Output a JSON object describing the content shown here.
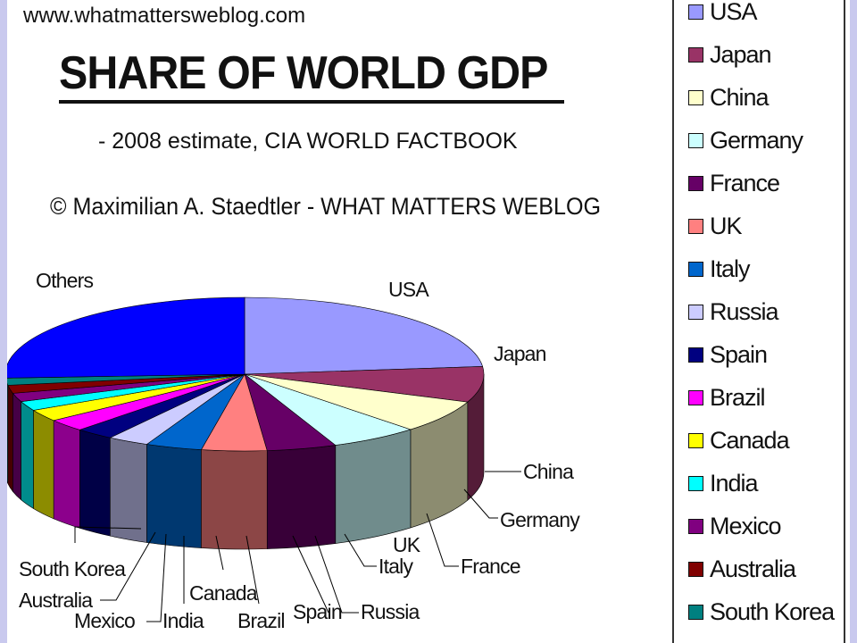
{
  "header": {
    "url": "www.whatmattersweblog.com",
    "title": "SHARE OF WORLD GDP",
    "subtitle": "- 2008 estimate, CIA WORLD FACTBOOK",
    "credit": "© Maximilian A. Staedtler - WHAT MATTERS WEBLOG"
  },
  "chart_data": {
    "type": "pie",
    "title": "SHARE OF WORLD GDP",
    "subtitle": "- 2008 estimate, CIA WORLD FACTBOOK",
    "legend_position": "right",
    "slices": [
      {
        "label": "USA",
        "value": 23.4,
        "color": "#9999ff"
      },
      {
        "label": "Japan",
        "value": 7.5,
        "color": "#993366"
      },
      {
        "label": "China",
        "value": 6.9,
        "color": "#ffffcc"
      },
      {
        "label": "Germany",
        "value": 6.0,
        "color": "#ccffff"
      },
      {
        "label": "France",
        "value": 4.7,
        "color": "#660066"
      },
      {
        "label": "UK",
        "value": 4.4,
        "color": "#ff8080"
      },
      {
        "label": "Italy",
        "value": 3.8,
        "color": "#0066cc"
      },
      {
        "label": "Russia",
        "value": 2.8,
        "color": "#ccccff"
      },
      {
        "label": "Spain",
        "value": 2.6,
        "color": "#000080"
      },
      {
        "label": "Brazil",
        "value": 2.6,
        "color": "#ff00ff"
      },
      {
        "label": "Canada",
        "value": 2.5,
        "color": "#ffff00"
      },
      {
        "label": "India",
        "value": 2.0,
        "color": "#00ffff"
      },
      {
        "label": "Mexico",
        "value": 1.8,
        "color": "#800080"
      },
      {
        "label": "Australia",
        "value": 1.7,
        "color": "#800000"
      },
      {
        "label": "South Korea",
        "value": 1.5,
        "color": "#008080"
      },
      {
        "label": "Others",
        "value": 25.8,
        "color": "#0000ff"
      }
    ]
  },
  "legend": {
    "items": [
      {
        "label": "USA",
        "color": "#9999ff"
      },
      {
        "label": "Japan",
        "color": "#993366"
      },
      {
        "label": "China",
        "color": "#ffffcc"
      },
      {
        "label": "Germany",
        "color": "#ccffff"
      },
      {
        "label": "France",
        "color": "#660066"
      },
      {
        "label": "UK",
        "color": "#ff8080"
      },
      {
        "label": "Italy",
        "color": "#0066cc"
      },
      {
        "label": "Russia",
        "color": "#ccccff"
      },
      {
        "label": "Spain",
        "color": "#000080"
      },
      {
        "label": "Brazil",
        "color": "#ff00ff"
      },
      {
        "label": "Canada",
        "color": "#ffff00"
      },
      {
        "label": "India",
        "color": "#00ffff"
      },
      {
        "label": "Mexico",
        "color": "#800080"
      },
      {
        "label": "Australia",
        "color": "#800000"
      },
      {
        "label": "South Korea",
        "color": "#008080"
      }
    ]
  }
}
